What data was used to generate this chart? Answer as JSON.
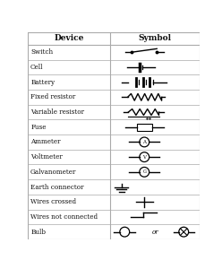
{
  "title_device": "Device",
  "title_symbol": "Symbol",
  "rows": [
    "Switch",
    "Cell",
    "Battery",
    "Fixed resistor",
    "Variable resistor",
    "Fuse",
    "Ammeter",
    "Voltmeter",
    "Galvanometer",
    "Earth connector",
    "Wires crossed",
    "Wires not connected",
    "Bulb"
  ],
  "col_split": 0.48,
  "bg_color": "#ffffff",
  "border_color": "#aaaaaa",
  "text_color": "#111111"
}
